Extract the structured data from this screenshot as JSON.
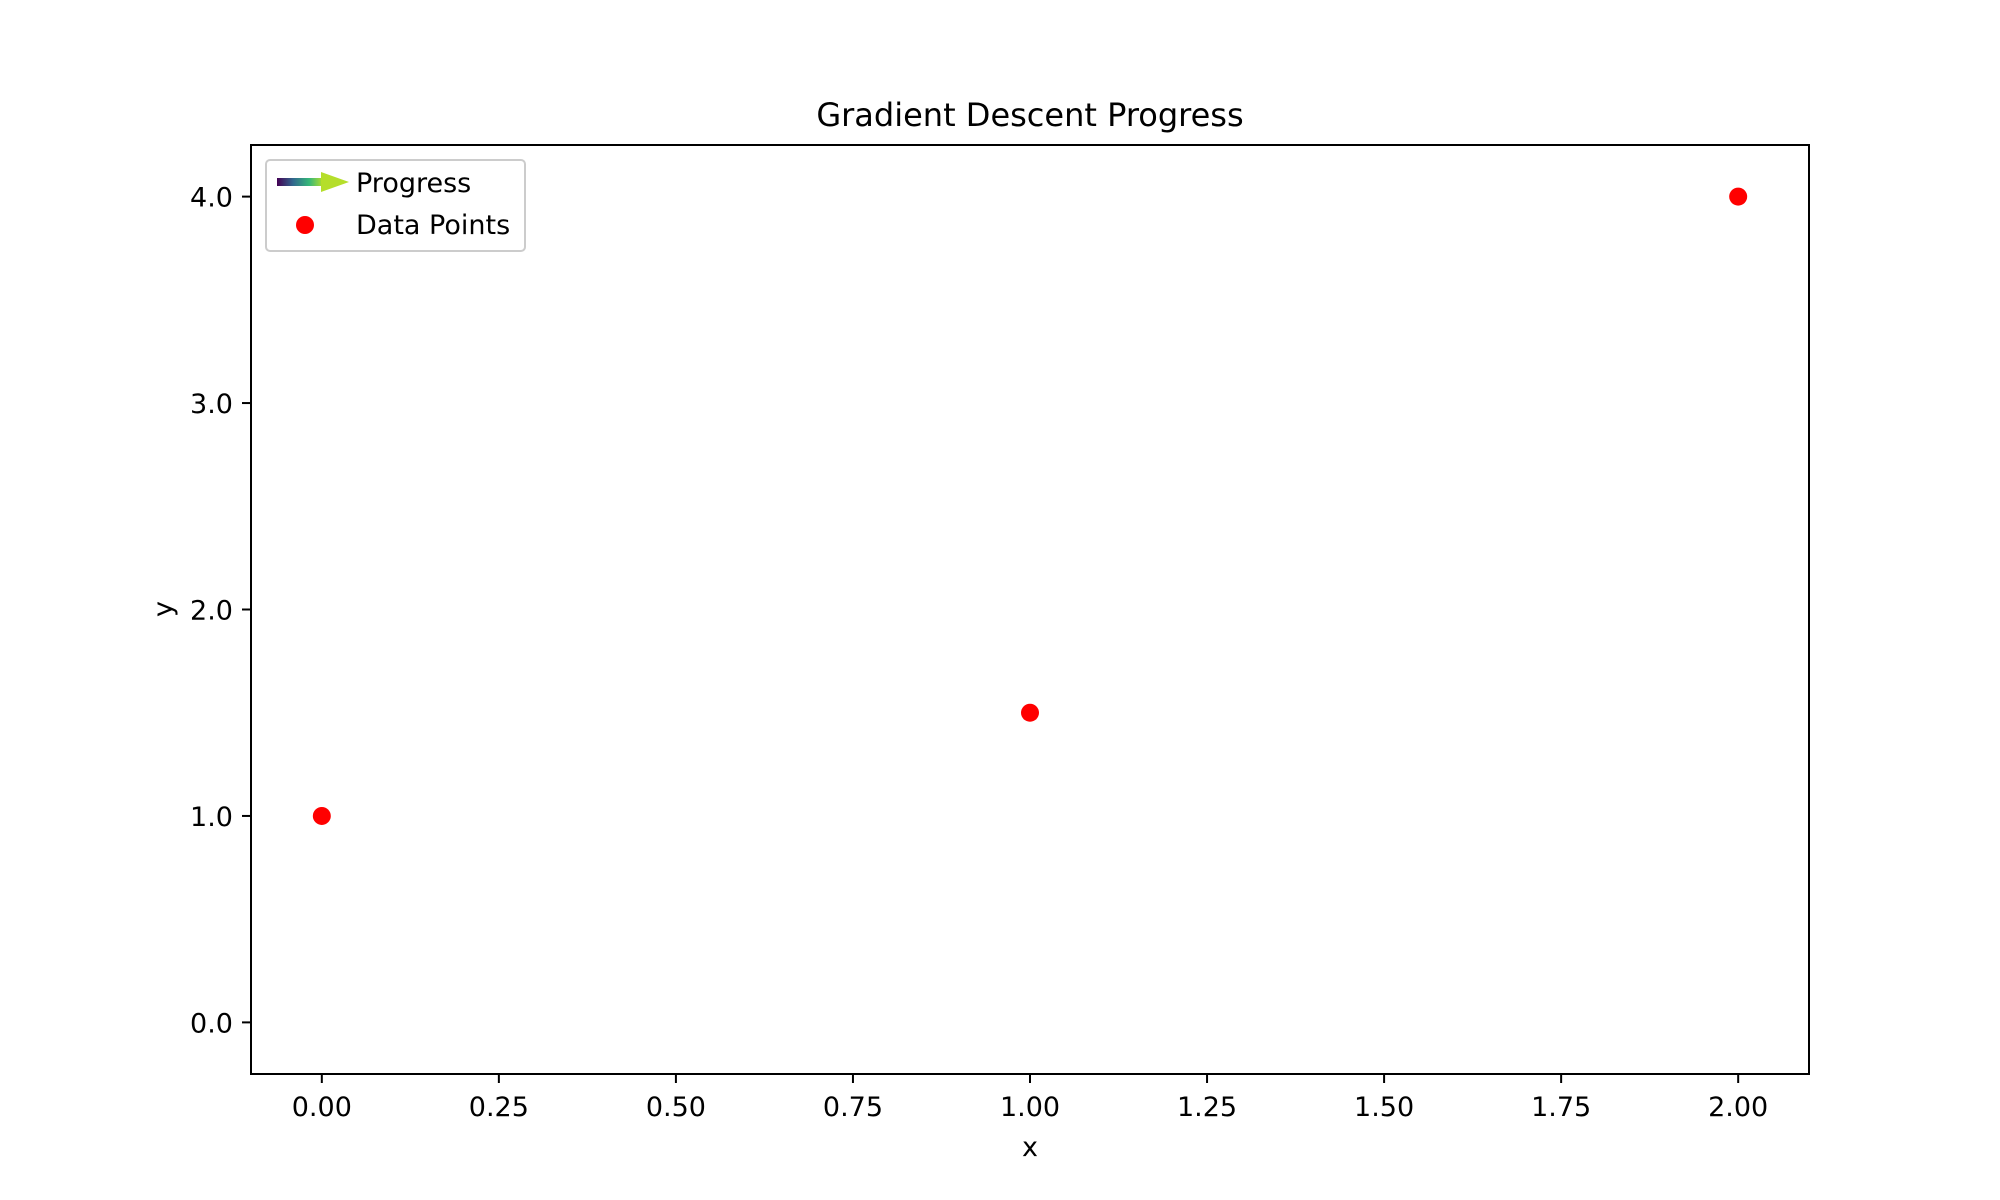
{
  "chart_data": {
    "type": "scatter",
    "title": "Gradient Descent Progress",
    "xlabel": "x",
    "ylabel": "y",
    "xlim": [
      -0.1,
      2.1
    ],
    "ylim": [
      -0.25,
      4.25
    ],
    "x_ticks": [
      0.0,
      0.25,
      0.5,
      0.75,
      1.0,
      1.25,
      1.5,
      1.75,
      2.0
    ],
    "x_tick_labels": [
      "0.00",
      "0.25",
      "0.50",
      "0.75",
      "1.00",
      "1.25",
      "1.50",
      "1.75",
      "2.00"
    ],
    "y_ticks": [
      0.0,
      1.0,
      2.0,
      3.0,
      4.0
    ],
    "y_tick_labels": [
      "0.0",
      "1.0",
      "2.0",
      "3.0",
      "4.0"
    ],
    "grid": false,
    "legend_position": "upper-left",
    "series": [
      {
        "name": "Data Points",
        "marker": "circle",
        "color": "#ff0000",
        "points": [
          {
            "x": 0.0,
            "y": 1.0
          },
          {
            "x": 1.0,
            "y": 1.5
          },
          {
            "x": 2.0,
            "y": 4.0
          }
        ]
      }
    ],
    "legend": [
      {
        "label": "Progress",
        "kind": "gradient-arrow",
        "colors": [
          "#440154",
          "#31688e",
          "#35b779",
          "#fde725"
        ]
      },
      {
        "label": "Data Points",
        "kind": "marker",
        "color": "#ff0000"
      }
    ]
  }
}
